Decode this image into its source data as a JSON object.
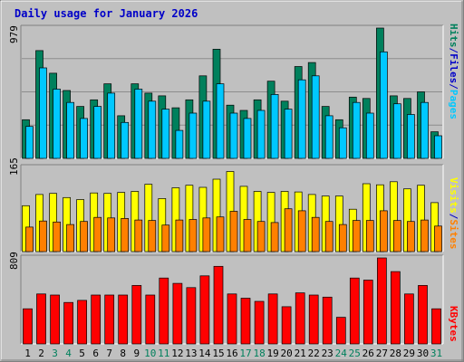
{
  "title": "Daily usage for January 2026",
  "colors": {
    "background": "#c0c0c0",
    "hits": "#00805c",
    "files": "#00c8ff",
    "visits": "#ffff00",
    "sites": "#ff8000",
    "kbytes": "#ff0000",
    "label_blue": "#0000c8",
    "weekday": "#000000",
    "weekend": "#00805c"
  },
  "panels": {
    "hits_files": {
      "max_label": "979",
      "right_labels": [
        "Pages",
        "Files",
        "Hits"
      ],
      "right_sep": "/"
    },
    "visits_sites": {
      "max_label": "165",
      "right_labels": [
        "Sites",
        "Visits"
      ],
      "right_sep": "/"
    },
    "kbytes": {
      "max_label": "809",
      "right_labels": [
        "KBytes"
      ]
    }
  },
  "chart_data": {
    "type": "bar",
    "categories": [
      "1",
      "2",
      "3",
      "4",
      "5",
      "6",
      "7",
      "8",
      "9",
      "10",
      "11",
      "12",
      "13",
      "14",
      "15",
      "16",
      "17",
      "18",
      "19",
      "20",
      "21",
      "22",
      "23",
      "24",
      "25",
      "26",
      "27",
      "28",
      "29",
      "30",
      "31"
    ],
    "weekend_days": [
      "3",
      "4",
      "10",
      "11",
      "17",
      "18",
      "24",
      "25",
      "31"
    ],
    "panels": [
      {
        "name": "hits_files",
        "ylim": [
          0,
          979
        ],
        "series": [
          {
            "name": "Hits",
            "values": [
              290,
              810,
              640,
              510,
              390,
              440,
              560,
              320,
              560,
              490,
              470,
              380,
              440,
              620,
              820,
              400,
              360,
              440,
              580,
              430,
              690,
              720,
              390,
              290,
              460,
              450,
              979,
              470,
              450,
              500,
              200
            ]
          },
          {
            "name": "Files",
            "values": [
              240,
              680,
              520,
              420,
              300,
              390,
              490,
              270,
              520,
              430,
              370,
              210,
              340,
              430,
              560,
              340,
              300,
              360,
              480,
              370,
              590,
              620,
              320,
              230,
              420,
              340,
              800,
              410,
              330,
              420,
              170
            ]
          }
        ]
      },
      {
        "name": "visits_sites",
        "ylim": [
          0,
          165
        ],
        "series": [
          {
            "name": "Visits",
            "values": [
              90,
              112,
              114,
              106,
              102,
              115,
              114,
              116,
              118,
              132,
              104,
              125,
              130,
              126,
              142,
              157,
              128,
              118,
              116,
              118,
              117,
              112,
              109,
              109,
              83,
              133,
              131,
              137,
              123,
              130,
              96
            ]
          },
          {
            "name": "Sites",
            "values": [
              48,
              60,
              58,
              53,
              59,
              67,
              66,
              65,
              62,
              61,
              52,
              62,
              63,
              66,
              68,
              79,
              63,
              59,
              57,
              84,
              80,
              67,
              59,
              53,
              61,
              61,
              80,
              61,
              59,
              62,
              50
            ]
          }
        ]
      },
      {
        "name": "kbytes",
        "ylim": [
          0,
          809
        ],
        "series": [
          {
            "name": "KBytes",
            "values": [
              330,
              470,
              460,
              390,
              410,
              460,
              460,
              460,
              550,
              460,
              620,
              570,
              530,
              640,
              730,
              470,
              430,
              400,
              470,
              350,
              480,
              460,
              440,
              250,
              620,
              600,
              809,
              680,
              470,
              550,
              330
            ]
          }
        ]
      }
    ]
  }
}
